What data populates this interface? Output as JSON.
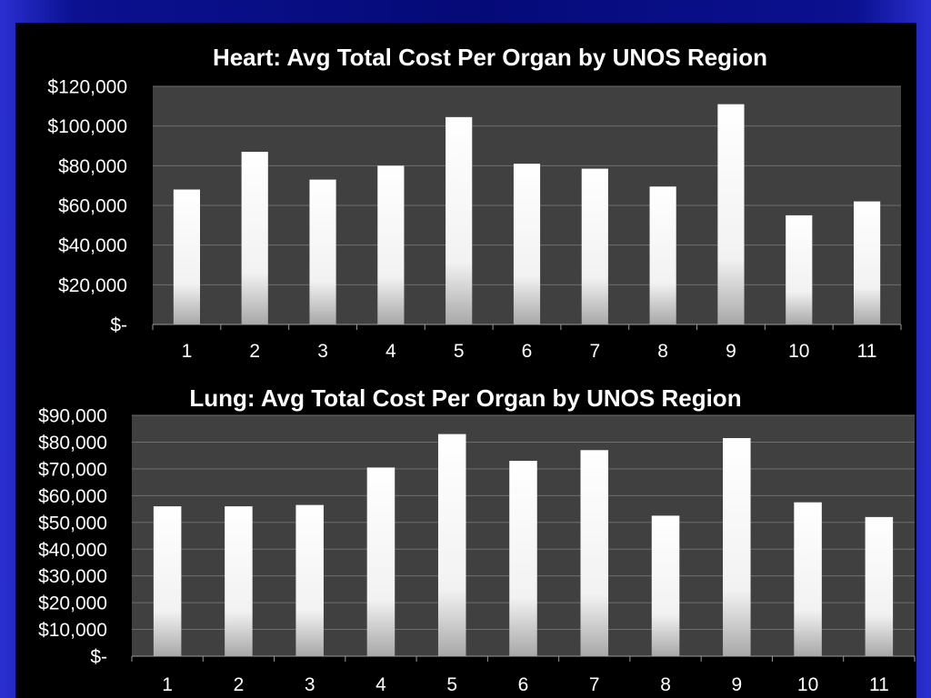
{
  "chart_data": [
    {
      "type": "bar",
      "title": "Heart:  Avg Total Cost Per Organ by UNOS Region",
      "xlabel": "",
      "ylabel": "",
      "categories": [
        "1",
        "2",
        "3",
        "4",
        "5",
        "6",
        "7",
        "8",
        "9",
        "10",
        "11"
      ],
      "values": [
        68000,
        87000,
        73000,
        80000,
        104500,
        81000,
        78500,
        69500,
        111000,
        55000,
        62000
      ],
      "ylim": [
        0,
        120000
      ],
      "yticks": [
        0,
        20000,
        40000,
        60000,
        80000,
        100000,
        120000
      ],
      "ytick_labels": [
        "$-",
        "$20,000",
        "$40,000",
        "$60,000",
        "$80,000",
        "$100,000",
        "$120,000"
      ],
      "grid": true
    },
    {
      "type": "bar",
      "title": "Lung:  Avg Total Cost Per Organ by UNOS Region",
      "xlabel": "",
      "ylabel": "",
      "categories": [
        "1",
        "2",
        "3",
        "4",
        "5",
        "6",
        "7",
        "8",
        "9",
        "10",
        "11"
      ],
      "values": [
        56000,
        56000,
        56500,
        70500,
        83000,
        73000,
        77000,
        52500,
        81500,
        57500,
        52000
      ],
      "ylim": [
        0,
        90000
      ],
      "yticks": [
        0,
        10000,
        20000,
        30000,
        40000,
        50000,
        60000,
        70000,
        80000,
        90000
      ],
      "ytick_labels": [
        "$-",
        "$10,000",
        "$20,000",
        "$30,000",
        "$40,000",
        "$50,000",
        "$60,000",
        "$70,000",
        "$80,000",
        "$90,000"
      ],
      "grid": true
    }
  ],
  "colors": {
    "page_background": "#050a78",
    "chart_background": "#000000",
    "plot_area": "#404040",
    "gridline": "#6e6e6e",
    "text": "#ffffff",
    "bar_top": "#ffffff",
    "bar_bottom": "#a8a8a8"
  }
}
